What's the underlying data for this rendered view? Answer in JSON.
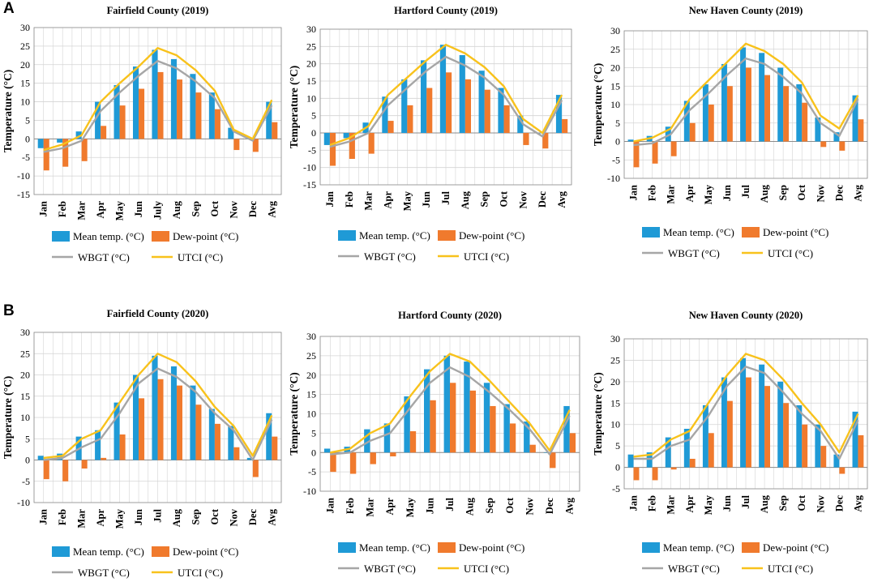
{
  "panel_labels": [
    "A",
    "B"
  ],
  "colors": {
    "mean": "#1f9ad6",
    "dew": "#f07a2d",
    "wbgt": "#a6a6a6",
    "utci": "#f8c21c",
    "grid": "#d4d4d4",
    "axis": "#8c8c8c"
  },
  "chart_data": [
    {
      "type": "bar",
      "title": "Fairfield County (2019)",
      "ylabel": "Temperature (°C)",
      "ylim": [
        -15,
        30
      ],
      "ytick_step": 5,
      "categories": [
        "Jan",
        "Feb",
        "Mar",
        "Apr",
        "May",
        "Jun",
        "July",
        "Aug",
        "Sep",
        "Oct",
        "Nov",
        "Dec",
        "Avg"
      ],
      "series": [
        {
          "name": "Mean temp. (°C)",
          "kind": "bar",
          "values": [
            -2.5,
            -1,
            2,
            10,
            14.5,
            19.5,
            24,
            21.5,
            17.5,
            12.5,
            3,
            0,
            10
          ]
        },
        {
          "name": "Dew-point (°C)",
          "kind": "bar",
          "values": [
            -8.5,
            -7.5,
            -6,
            3.5,
            9,
            13.5,
            18,
            16,
            12.5,
            8,
            -3,
            -3.5,
            4.5
          ]
        },
        {
          "name": "WBGT (°C)",
          "kind": "line",
          "values": [
            -3.5,
            -2.5,
            -0.5,
            7.5,
            12.5,
            17,
            21,
            19,
            15.5,
            11,
            2,
            -0.5,
            9
          ]
        },
        {
          "name": "UTCI (°C)",
          "kind": "line",
          "values": [
            -3,
            -1.5,
            1,
            10,
            15,
            19.5,
            24.5,
            22.5,
            18.5,
            13,
            2.5,
            0,
            10.5
          ]
        }
      ]
    },
    {
      "type": "bar",
      "title": "Hartford County (2019)",
      "ylabel": "Temperature (°C)",
      "ylim": [
        -15,
        30
      ],
      "ytick_step": 5,
      "categories": [
        "Jan",
        "Feb",
        "Mar",
        "Apr",
        "May",
        "Jun",
        "Jul",
        "Aug",
        "Sep",
        "Oct",
        "Nov",
        "Dec",
        "Avg"
      ],
      "series": [
        {
          "name": "Mean temp. (°C)",
          "kind": "bar",
          "values": [
            -3.5,
            -1.5,
            3,
            10.5,
            15.5,
            21,
            25.5,
            22.5,
            18,
            13,
            5,
            0,
            11
          ]
        },
        {
          "name": "Dew-point (°C)",
          "kind": "bar",
          "values": [
            -9.5,
            -7.5,
            -6,
            3.5,
            8,
            13,
            17.5,
            15.5,
            12.5,
            8,
            -3.5,
            -4.5,
            4
          ]
        },
        {
          "name": "WBGT (°C)",
          "kind": "line",
          "values": [
            -4,
            -2.5,
            0,
            8,
            13,
            18,
            22,
            19.5,
            16,
            11,
            2.5,
            -1,
            9.5
          ]
        },
        {
          "name": "UTCI (°C)",
          "kind": "line",
          "values": [
            -3.5,
            -1.5,
            2,
            11,
            16,
            21,
            25.5,
            23,
            19,
            13.5,
            4,
            0,
            11
          ]
        }
      ]
    },
    {
      "type": "bar",
      "title": "New Haven County (2019)",
      "ylabel": "Temperature (°C)",
      "ylim": [
        -10,
        30
      ],
      "ytick_step": 5,
      "categories": [
        "Jan",
        "Feb",
        "Mar",
        "Apr",
        "May",
        "Jun",
        "Jul",
        "Aug",
        "Sep",
        "Oct",
        "Nov",
        "Dec",
        "Avg"
      ],
      "series": [
        {
          "name": "Mean temp. (°C)",
          "kind": "bar",
          "values": [
            0.5,
            1.5,
            4,
            11,
            15.5,
            21,
            25.5,
            24,
            20,
            15.5,
            6.5,
            2.5,
            12.5
          ]
        },
        {
          "name": "Dew-point (°C)",
          "kind": "bar",
          "values": [
            -7,
            -6,
            -4,
            5,
            10,
            15,
            20,
            18,
            15,
            10.5,
            -1.5,
            -2.5,
            6
          ]
        },
        {
          "name": "WBGT (°C)",
          "kind": "line",
          "values": [
            -1,
            -0.5,
            2,
            8.5,
            13,
            18,
            22.5,
            21,
            17.5,
            13,
            5,
            1.5,
            11.5
          ]
        },
        {
          "name": "UTCI (°C)",
          "kind": "line",
          "values": [
            0,
            1,
            3.5,
            11.5,
            16.5,
            21.5,
            26.5,
            24.5,
            21,
            16,
            7,
            3.5,
            12.5
          ]
        }
      ]
    },
    {
      "type": "bar",
      "title": "Fairfield County (2020)",
      "ylabel": "Temperature (°C)",
      "ylim": [
        -10,
        30
      ],
      "ytick_step": 5,
      "categories": [
        "Jan",
        "Feb",
        "Mar",
        "Apr",
        "May",
        "Jun",
        "Jul",
        "Aug",
        "Sep",
        "Oct",
        "Nov",
        "Dec",
        "Avg"
      ],
      "series": [
        {
          "name": "Mean temp. (°C)",
          "kind": "bar",
          "values": [
            1,
            1.5,
            5.5,
            7,
            13.5,
            20,
            24.5,
            22,
            17.5,
            12,
            8,
            0.5,
            11
          ]
        },
        {
          "name": "Dew-point (°C)",
          "kind": "bar",
          "values": [
            -4.5,
            -5,
            -2,
            0.5,
            6,
            14.5,
            19,
            17.5,
            13,
            8.5,
            3,
            -4,
            5.5
          ]
        },
        {
          "name": "WBGT (°C)",
          "kind": "line",
          "values": [
            0,
            0.5,
            3,
            5,
            11,
            18,
            21.5,
            19.5,
            16,
            11,
            7,
            0,
            9.5
          ]
        },
        {
          "name": "UTCI (°C)",
          "kind": "line",
          "values": [
            0.5,
            1,
            5,
            7,
            13.5,
            20,
            25,
            23,
            18.5,
            12.5,
            8,
            1,
            10.5
          ]
        }
      ]
    },
    {
      "type": "bar",
      "title": "Hartford County (2020)",
      "ylabel": "Temperature (°C)",
      "ylim": [
        -10,
        30
      ],
      "ytick_step": 5,
      "categories": [
        "Jan",
        "Feb",
        "Mar",
        "Apr",
        "May",
        "Jun",
        "Jul",
        "Aug",
        "Sep",
        "Oct",
        "Nov",
        "Dec",
        "Avg"
      ],
      "series": [
        {
          "name": "Mean temp. (°C)",
          "kind": "bar",
          "values": [
            1,
            1.5,
            6,
            7.5,
            14.5,
            21.5,
            25,
            23.5,
            18,
            12.5,
            8,
            0,
            12
          ]
        },
        {
          "name": "Dew-point (°C)",
          "kind": "bar",
          "values": [
            -5,
            -5.5,
            -3,
            -1,
            5.5,
            13.5,
            18,
            16,
            12,
            7.5,
            2,
            -4,
            5
          ]
        },
        {
          "name": "WBGT (°C)",
          "kind": "line",
          "values": [
            -0.5,
            0,
            3,
            5,
            11.5,
            18,
            22,
            19.5,
            15.5,
            11,
            6,
            -0.5,
            9.5
          ]
        },
        {
          "name": "UTCI (°C)",
          "kind": "line",
          "values": [
            0,
            1,
            5,
            7.5,
            14.5,
            21,
            25.5,
            23.5,
            18.5,
            13,
            7.5,
            0.5,
            11
          ]
        }
      ]
    },
    {
      "type": "bar",
      "title": "New Haven County (2020)",
      "ylabel": "Temperature (°C)",
      "ylim": [
        -5,
        30
      ],
      "ytick_step": 5,
      "categories": [
        "Jan",
        "Feb",
        "Mar",
        "Apr",
        "May",
        "Jun",
        "Jul",
        "Aug",
        "Sep",
        "Oct",
        "Nov",
        "Dec",
        "Avg"
      ],
      "series": [
        {
          "name": "Mean temp. (°C)",
          "kind": "bar",
          "values": [
            3,
            3.5,
            7,
            9,
            14.5,
            21,
            25.5,
            24,
            20,
            14.5,
            10,
            3,
            13
          ]
        },
        {
          "name": "Dew-point (°C)",
          "kind": "bar",
          "values": [
            -3,
            -3,
            -0.5,
            2,
            8,
            15.5,
            21,
            19,
            15,
            10,
            5,
            -1.5,
            7.5
          ]
        },
        {
          "name": "WBGT (°C)",
          "kind": "line",
          "values": [
            2,
            2,
            5,
            6.5,
            12,
            19,
            23.5,
            22,
            17.5,
            12.5,
            8.5,
            2,
            11
          ]
        },
        {
          "name": "UTCI (°C)",
          "kind": "line",
          "values": [
            2.5,
            3,
            6.5,
            8.5,
            15,
            21.5,
            26.5,
            25,
            20.5,
            15,
            10,
            3.5,
            12.5
          ]
        }
      ]
    }
  ]
}
